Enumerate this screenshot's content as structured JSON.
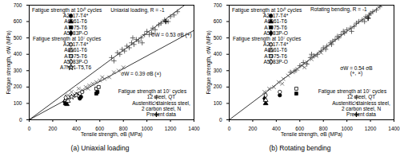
{
  "chart_data": [
    {
      "type": "scatter",
      "title": "(a) Uniaxial loading",
      "x_label": "Tensile strength, σB (MPa)",
      "y_label": "Fatigue strength, σW (MPa)",
      "xlim": [
        0,
        1400
      ],
      "xticks": [
        0,
        200,
        400,
        600,
        800,
        1000,
        1200,
        1400
      ],
      "ylim": [
        0,
        700
      ],
      "yticks": [
        0,
        100,
        200,
        300,
        400,
        500,
        600,
        700
      ],
      "lines": [
        {
          "x": [
            0,
            1320
          ],
          "y": [
            0,
            700
          ],
          "color": "#000000"
        },
        {
          "x": [
            0,
            1400
          ],
          "y": [
            0,
            546
          ],
          "color": "#000000"
        }
      ],
      "annotations": [
        {
          "text": "Uniaxial loading, R = -1",
          "x": 920,
          "y": 670
        },
        {
          "text": "σW = 0.53 σB (+)",
          "x": 1210,
          "y": 520
        },
        {
          "text": "σW = 0.39 σB (×)",
          "x": 950,
          "y": 280
        }
      ],
      "series": [
        {
          "name": "A2017-T4*",
          "legend_title": "Fatigue strength at 10¹⁰ cycles",
          "legend": "upper left",
          "marker": "circle",
          "color": "#000000",
          "values": [
            [
              430,
              130
            ],
            [
              440,
              140
            ]
          ]
        },
        {
          "name": "A6061-T6",
          "legend_title": "Fatigue strength at 10¹⁰ cycles",
          "legend": "upper left",
          "marker": "triangle",
          "color": "#000000",
          "values": [
            [
              310,
              100
            ],
            [
              320,
              95
            ]
          ]
        },
        {
          "name": "A7075-T6",
          "legend_title": "Fatigue strength at 10¹⁰ cycles",
          "legend": "upper left",
          "marker": "square",
          "color": "#000000",
          "values": [
            [
              570,
              160
            ],
            [
              580,
              170
            ]
          ]
        },
        {
          "name": "A5083P-O",
          "legend_title": "Fatigue strength at 10¹⁰ cycles",
          "legend": "upper left",
          "marker": "diamond",
          "color": "#000000",
          "values": [
            [
              300,
              110
            ]
          ]
        },
        {
          "name": "A2017-T4*",
          "legend_title": "Fatigue strength at 10⁷ cycles",
          "legend": "upper left",
          "marker": "circle-open",
          "color": "#000000",
          "values": [
            [
              430,
              160
            ],
            [
              450,
              170
            ]
          ]
        },
        {
          "name": "A6061-T6",
          "legend_title": "Fatigue strength at 10⁷ cycles",
          "legend": "upper left",
          "marker": "triangle-open",
          "color": "#000000",
          "values": [
            [
              310,
              120
            ],
            [
              330,
              115
            ]
          ]
        },
        {
          "name": "A7075-T6",
          "legend_title": "Fatigue strength at 10⁷ cycles",
          "legend": "upper left",
          "marker": "square-open",
          "color": "#000000",
          "values": [
            [
              570,
              190
            ],
            [
              590,
              200
            ]
          ]
        },
        {
          "name": "A5083P-O",
          "legend_title": "Fatigue strength at 10⁷ cycles",
          "legend": "upper left",
          "marker": "diamond-open",
          "color": "#000000",
          "values": [
            [
              310,
              135
            ]
          ]
        },
        {
          "name": "A7N01-T5,T6",
          "legend_title": "Fatigue strength at 10⁷ cycles",
          "legend": "upper left",
          "marker": "star-open",
          "color": "#000000",
          "values": [
            [
              360,
              140
            ],
            [
              400,
              150
            ]
          ]
        },
        {
          "name": "12 steel, QT",
          "legend_title": "Fatigue strength at 10⁷ cycles",
          "legend": "lower right",
          "marker": "plus",
          "color": "#444444",
          "values": [
            [
              700,
              380
            ],
            [
              720,
              360
            ],
            [
              750,
              410
            ],
            [
              770,
              400
            ],
            [
              790,
              430
            ],
            [
              810,
              420
            ],
            [
              830,
              450
            ],
            [
              850,
              440
            ],
            [
              870,
              470
            ],
            [
              880,
              500
            ],
            [
              890,
              460
            ],
            [
              910,
              490
            ],
            [
              930,
              480
            ],
            [
              950,
              500
            ],
            [
              960,
              470
            ],
            [
              980,
              520
            ],
            [
              1000,
              540
            ],
            [
              1020,
              520
            ],
            [
              1040,
              530
            ],
            [
              1050,
              560
            ],
            [
              1070,
              550
            ],
            [
              1100,
              580
            ],
            [
              1120,
              590
            ],
            [
              1150,
              610
            ],
            [
              1180,
              600
            ],
            [
              1200,
              630
            ],
            [
              1230,
              640
            ],
            [
              1260,
              660
            ]
          ]
        },
        {
          "name": "Austenitic stainless steel, 2 carbon steel, N",
          "legend_title": "Fatigue strength at 10⁷ cycles",
          "legend": "lower right",
          "marker": "times",
          "color": "#555555",
          "values": [
            [
              330,
              150
            ],
            [
              360,
              170
            ],
            [
              400,
              160
            ],
            [
              420,
              190
            ],
            [
              450,
              180
            ],
            [
              480,
              200
            ],
            [
              500,
              190
            ],
            [
              510,
              210
            ],
            [
              540,
              220
            ],
            [
              570,
              230
            ],
            [
              600,
              240
            ],
            [
              620,
              260
            ],
            [
              640,
              250
            ],
            [
              680,
              260
            ],
            [
              720,
              290
            ],
            [
              760,
              300
            ],
            [
              800,
              320
            ]
          ]
        },
        {
          "name": "Present data",
          "legend": "lower right",
          "marker": "plus",
          "color": "#000000",
          "values": [
            [
              1160,
              600
            ]
          ]
        }
      ]
    },
    {
      "type": "scatter",
      "title": "(b) Rotating bending",
      "x_label": "Tensile strength, σB (MPa)",
      "y_label": "Fatigue strength, σW (MPa)",
      "xlim": [
        0,
        1400
      ],
      "xticks": [
        0,
        200,
        400,
        600,
        800,
        1000,
        1200,
        1400
      ],
      "ylim": [
        0,
        700
      ],
      "yticks": [
        0,
        100,
        200,
        300,
        400,
        500,
        600,
        700
      ],
      "lines": [
        {
          "x": [
            0,
            1300
          ],
          "y": [
            0,
            702
          ],
          "color": "#000000"
        }
      ],
      "annotations": [
        {
          "text": "Rotating bending, R = -1",
          "x": 930,
          "y": 675
        },
        {
          "text": "σW = 0.54 σB\n(+, ×)",
          "x": 1080,
          "y": 300
        }
      ],
      "series": [
        {
          "name": "A2017-T4*",
          "legend_title": "Fatigue strength at 10¹⁰ cycles",
          "legend": "upper left",
          "marker": "circle",
          "color": "#000000",
          "values": [
            [
              430,
              150
            ]
          ]
        },
        {
          "name": "A6061-T6",
          "legend_title": "Fatigue strength at 10¹⁰ cycles",
          "legend": "upper left",
          "marker": "triangle",
          "color": "#000000",
          "values": [
            [
              310,
              100
            ]
          ]
        },
        {
          "name": "A7075-T6",
          "legend_title": "Fatigue strength at 10¹⁰ cycles",
          "legend": "upper left",
          "marker": "square",
          "color": "#000000",
          "values": [
            [
              570,
              160
            ]
          ]
        },
        {
          "name": "A5083P-O",
          "legend_title": "Fatigue strength at 10¹⁰ cycles",
          "legend": "upper left",
          "marker": "diamond",
          "color": "#000000",
          "values": [
            [
              300,
              130
            ]
          ]
        },
        {
          "name": "A2017-T4*",
          "legend_title": "Fatigue strength at 10⁷ cycles",
          "legend": "upper left",
          "marker": "circle-open",
          "color": "#000000",
          "values": [
            [
              430,
              170
            ]
          ]
        },
        {
          "name": "A6061-T6",
          "legend_title": "Fatigue strength at 10⁷ cycles",
          "legend": "upper left",
          "marker": "triangle-open",
          "color": "#000000",
          "values": [
            [
              310,
              120
            ]
          ]
        },
        {
          "name": "A7075-T6",
          "legend_title": "Fatigue strength at 10⁷ cycles",
          "legend": "upper left",
          "marker": "square-open",
          "color": "#000000",
          "values": [
            [
              570,
              190
            ]
          ]
        },
        {
          "name": "A5083P-O",
          "legend_title": "Fatigue strength at 10⁷ cycles",
          "legend": "upper left",
          "marker": "diamond-open",
          "color": "#000000",
          "values": [
            [
              310,
              150
            ]
          ]
        },
        {
          "name": "12 steel, QT",
          "legend_title": "Fatigue strength at 10⁷ cycles",
          "legend": "lower right",
          "marker": "plus",
          "color": "#444444",
          "values": [
            [
              520,
              290
            ],
            [
              560,
              300
            ],
            [
              600,
              330
            ],
            [
              630,
              350
            ],
            [
              660,
              340
            ],
            [
              690,
              380
            ],
            [
              700,
              400
            ],
            [
              720,
              390
            ],
            [
              750,
              400
            ],
            [
              780,
              420
            ],
            [
              800,
              440
            ],
            [
              820,
              430
            ],
            [
              830,
              450
            ],
            [
              860,
              470
            ],
            [
              870,
              460
            ],
            [
              880,
              480
            ],
            [
              900,
              490
            ],
            [
              920,
              510
            ],
            [
              930,
              500
            ],
            [
              950,
              520
            ],
            [
              970,
              540
            ],
            [
              980,
              530
            ],
            [
              1000,
              550
            ],
            [
              1030,
              560
            ],
            [
              1040,
              540
            ],
            [
              1060,
              570
            ],
            [
              1080,
              590
            ],
            [
              1100,
              600
            ],
            [
              1130,
              610
            ],
            [
              1150,
              600
            ],
            [
              1160,
              630
            ],
            [
              1190,
              640
            ],
            [
              1200,
              650
            ],
            [
              1220,
              660
            ],
            [
              1250,
              670
            ],
            [
              1280,
              690
            ]
          ]
        },
        {
          "name": "Austenitic stainless steel, 2 carbon steel, N",
          "legend_title": "Fatigue strength at 10⁷ cycles",
          "legend": "lower right",
          "marker": "times",
          "color": "#555555",
          "values": [
            [
              300,
              170
            ],
            [
              340,
              190
            ],
            [
              380,
              200
            ],
            [
              420,
              230
            ],
            [
              450,
              220
            ],
            [
              460,
              250
            ],
            [
              500,
              270
            ],
            [
              540,
              290
            ],
            [
              560,
              300
            ],
            [
              580,
              310
            ],
            [
              620,
              330
            ],
            [
              640,
              320
            ],
            [
              660,
              350
            ],
            [
              700,
              370
            ],
            [
              740,
              390
            ],
            [
              780,
              410
            ]
          ]
        },
        {
          "name": "Present data",
          "legend": "lower right",
          "marker": "plus",
          "color": "#000000",
          "values": [
            [
              1180,
              620
            ]
          ]
        }
      ]
    }
  ]
}
